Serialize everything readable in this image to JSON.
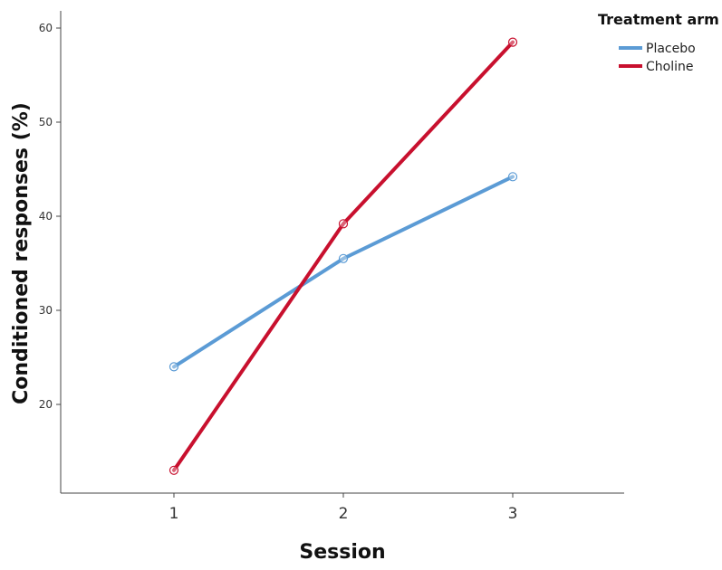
{
  "chart_data": {
    "type": "line",
    "xlabel": "Session",
    "ylabel": "Conditioned responses (%)",
    "categories": [
      "1",
      "2",
      "3"
    ],
    "yticks": [
      20,
      30,
      40,
      50,
      60
    ],
    "ylim": [
      11,
      62
    ],
    "grid": false,
    "legend": {
      "title": "Treatment arm",
      "position": "top-right"
    },
    "series": [
      {
        "name": "Placebo",
        "color": "#5b9bd5",
        "values": [
          24.0,
          35.5,
          44.2
        ]
      },
      {
        "name": "Choline",
        "color": "#c8102e",
        "values": [
          13.0,
          39.2,
          58.5
        ]
      }
    ]
  }
}
